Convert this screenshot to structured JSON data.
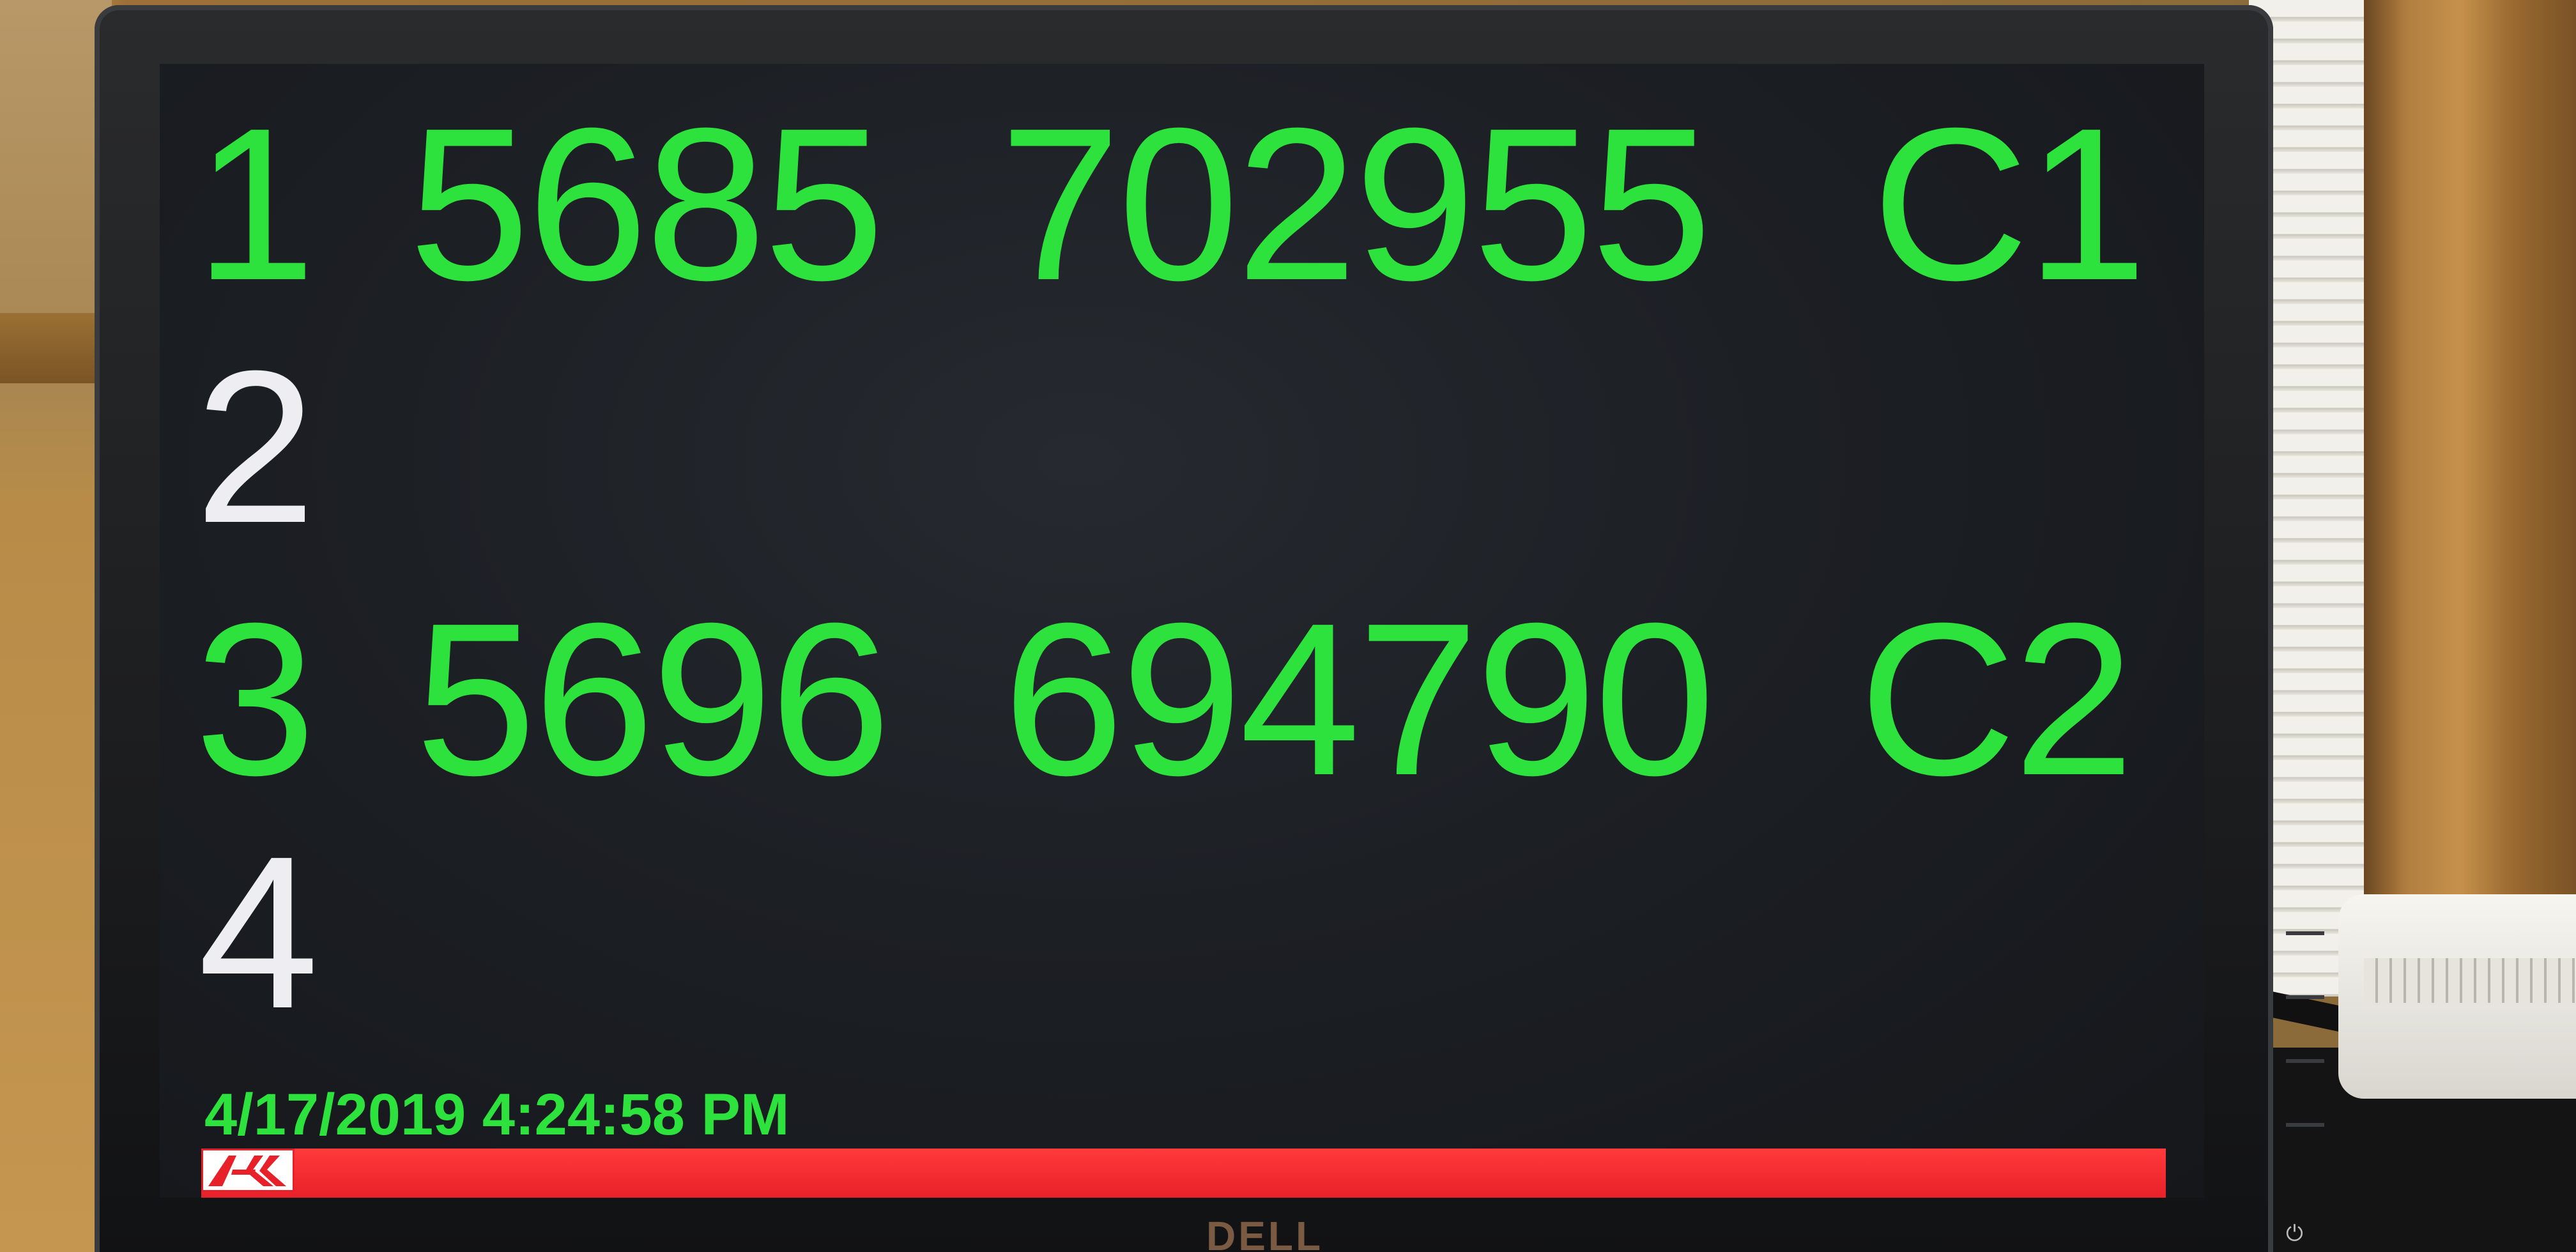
{
  "display": {
    "rows": [
      {
        "num": "1",
        "code": "5685",
        "value": "702955",
        "slot": "C1"
      },
      {
        "num": "2",
        "code": "",
        "value": "",
        "slot": ""
      },
      {
        "num": "3",
        "code": "5696",
        "value": "694790",
        "slot": "C2"
      },
      {
        "num": "4",
        "code": "",
        "value": "",
        "slot": ""
      }
    ],
    "timestamp": "4/17/2019 4:24:58 PM"
  },
  "monitor": {
    "brand": "DELL"
  },
  "colors": {
    "active_text": "#2ee23d",
    "idle_text": "#eeeef2",
    "status_bar": "#e8202a"
  },
  "icons": {
    "logo": "company-logo-icon",
    "power": "power-icon"
  }
}
